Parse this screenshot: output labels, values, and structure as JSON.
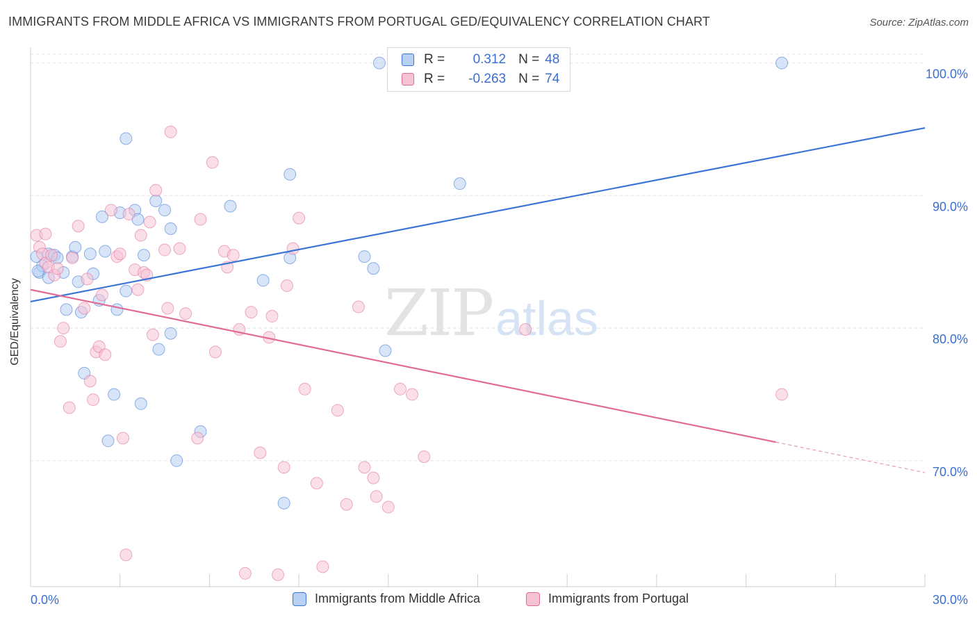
{
  "title": "IMMIGRANTS FROM MIDDLE AFRICA VS IMMIGRANTS FROM PORTUGAL GED/EQUIVALENCY CORRELATION CHART",
  "source": "Source: ZipAtlas.com",
  "watermark": {
    "zip": "ZIP",
    "atlas": "atlas"
  },
  "legend": {
    "series1": {
      "r_label": "R =",
      "r_value": "0.312",
      "n_label": "N =",
      "n_value": "48"
    },
    "series2": {
      "r_label": "R =",
      "r_value": "-0.263",
      "n_label": "N =",
      "n_value": "74"
    }
  },
  "colors": {
    "blue": "#3a74d4",
    "pink": "#e06b98",
    "blue_fill": "#b8d0f2",
    "pink_fill": "#f6c3d5",
    "axis_text": "#3a6fd0",
    "grid": "#e2e2e2"
  },
  "chart_data": {
    "type": "scatter",
    "title": "IMMIGRANTS FROM MIDDLE AFRICA VS IMMIGRANTS FROM PORTUGAL GED/EQUIVALENCY CORRELATION CHART",
    "xlabel": "",
    "ylabel": "GED/Equivalency",
    "xlim": [
      0,
      30
    ],
    "ylim": [
      60.5,
      101.5
    ],
    "x_tick_labels": [
      "0.0%",
      "30.0%"
    ],
    "y_ticks": [
      70,
      80,
      90,
      100
    ],
    "y_tick_labels": [
      "70.0%",
      "80.0%",
      "90.0%",
      "100.0%"
    ],
    "grid": true,
    "legend_position": "top-center",
    "series": [
      {
        "name": "Immigrants from Middle Africa",
        "color": "#3a74d4",
        "r": 0.312,
        "n": 48,
        "trend": {
          "x": [
            0.0,
            30.0
          ],
          "y": [
            82.0,
            95.1
          ]
        },
        "points": [
          [
            0.2,
            85.4
          ],
          [
            0.3,
            84.2
          ],
          [
            0.4,
            84.7
          ],
          [
            0.6,
            83.8
          ],
          [
            0.6,
            85.6
          ],
          [
            0.8,
            85.5
          ],
          [
            0.9,
            85.3
          ],
          [
            1.1,
            84.2
          ],
          [
            1.2,
            81.4
          ],
          [
            1.4,
            85.4
          ],
          [
            1.5,
            86.1
          ],
          [
            1.6,
            83.5
          ],
          [
            1.7,
            81.2
          ],
          [
            1.8,
            76.6
          ],
          [
            2.0,
            85.6
          ],
          [
            2.1,
            84.1
          ],
          [
            2.3,
            82.1
          ],
          [
            2.4,
            88.4
          ],
          [
            2.5,
            85.8
          ],
          [
            2.8,
            75.0
          ],
          [
            2.6,
            71.5
          ],
          [
            2.9,
            81.4
          ],
          [
            3.0,
            88.7
          ],
          [
            3.2,
            82.8
          ],
          [
            3.2,
            94.3
          ],
          [
            3.5,
            88.9
          ],
          [
            3.6,
            88.2
          ],
          [
            3.7,
            74.3
          ],
          [
            3.8,
            85.5
          ],
          [
            4.2,
            89.6
          ],
          [
            4.3,
            78.4
          ],
          [
            4.5,
            88.9
          ],
          [
            4.7,
            79.6
          ],
          [
            4.7,
            87.5
          ],
          [
            4.9,
            70.0
          ],
          [
            5.7,
            72.2
          ],
          [
            6.7,
            89.2
          ],
          [
            7.8,
            83.6
          ],
          [
            8.5,
            66.8
          ],
          [
            8.7,
            91.6
          ],
          [
            8.7,
            85.3
          ],
          [
            11.2,
            85.4
          ],
          [
            11.5,
            84.5
          ],
          [
            11.7,
            100.0
          ],
          [
            11.9,
            78.3
          ],
          [
            14.4,
            90.9
          ],
          [
            25.2,
            100.0
          ],
          [
            0.25,
            84.3
          ]
        ]
      },
      {
        "name": "Immigrants from Portugal",
        "color": "#e06b98",
        "r": -0.263,
        "n": 74,
        "trend": {
          "x": [
            0.0,
            25.0
          ],
          "y": [
            82.9,
            71.4
          ]
        },
        "trend_dashed": {
          "x": [
            25.0,
            30.0
          ],
          "y": [
            71.4,
            69.1
          ]
        },
        "points": [
          [
            0.2,
            87.0
          ],
          [
            0.3,
            86.1
          ],
          [
            0.4,
            85.6
          ],
          [
            0.5,
            84.9
          ],
          [
            0.5,
            87.1
          ],
          [
            0.6,
            84.6
          ],
          [
            0.7,
            85.5
          ],
          [
            0.8,
            84.0
          ],
          [
            0.9,
            84.5
          ],
          [
            1.0,
            79.0
          ],
          [
            1.1,
            80.0
          ],
          [
            1.3,
            74.0
          ],
          [
            1.4,
            85.3
          ],
          [
            1.6,
            87.7
          ],
          [
            1.8,
            81.5
          ],
          [
            1.9,
            83.7
          ],
          [
            2.0,
            76.0
          ],
          [
            2.1,
            74.6
          ],
          [
            2.2,
            78.2
          ],
          [
            2.3,
            78.6
          ],
          [
            2.4,
            82.5
          ],
          [
            2.5,
            78.0
          ],
          [
            2.7,
            88.9
          ],
          [
            2.9,
            85.4
          ],
          [
            3.0,
            85.6
          ],
          [
            3.1,
            71.7
          ],
          [
            3.2,
            62.9
          ],
          [
            3.3,
            88.6
          ],
          [
            3.5,
            84.4
          ],
          [
            3.6,
            82.9
          ],
          [
            3.7,
            87.0
          ],
          [
            3.8,
            84.2
          ],
          [
            3.9,
            84.0
          ],
          [
            4.0,
            88.0
          ],
          [
            4.1,
            79.5
          ],
          [
            4.2,
            90.4
          ],
          [
            4.5,
            85.9
          ],
          [
            4.6,
            81.5
          ],
          [
            4.7,
            94.8
          ],
          [
            5.0,
            86.0
          ],
          [
            5.2,
            81.1
          ],
          [
            5.6,
            71.7
          ],
          [
            5.7,
            88.2
          ],
          [
            6.1,
            92.5
          ],
          [
            6.2,
            78.2
          ],
          [
            6.5,
            85.8
          ],
          [
            6.6,
            84.6
          ],
          [
            6.8,
            85.5
          ],
          [
            7.0,
            79.9
          ],
          [
            7.2,
            61.5
          ],
          [
            7.4,
            81.2
          ],
          [
            7.7,
            70.6
          ],
          [
            8.0,
            79.3
          ],
          [
            8.1,
            80.9
          ],
          [
            8.3,
            61.4
          ],
          [
            8.5,
            69.5
          ],
          [
            8.6,
            83.2
          ],
          [
            8.8,
            86.0
          ],
          [
            9.0,
            88.3
          ],
          [
            9.2,
            75.4
          ],
          [
            9.6,
            68.3
          ],
          [
            9.8,
            62.0
          ],
          [
            10.3,
            73.8
          ],
          [
            10.6,
            66.7
          ],
          [
            11.0,
            81.6
          ],
          [
            11.2,
            69.5
          ],
          [
            11.5,
            68.7
          ],
          [
            11.6,
            67.3
          ],
          [
            12.0,
            66.5
          ],
          [
            12.4,
            75.4
          ],
          [
            12.8,
            75.0
          ],
          [
            13.2,
            70.3
          ],
          [
            16.6,
            79.9
          ],
          [
            25.2,
            75.0
          ]
        ]
      }
    ]
  },
  "bottom_legend": {
    "item1": "Immigrants from Middle Africa",
    "item2": "Immigrants from Portugal"
  }
}
